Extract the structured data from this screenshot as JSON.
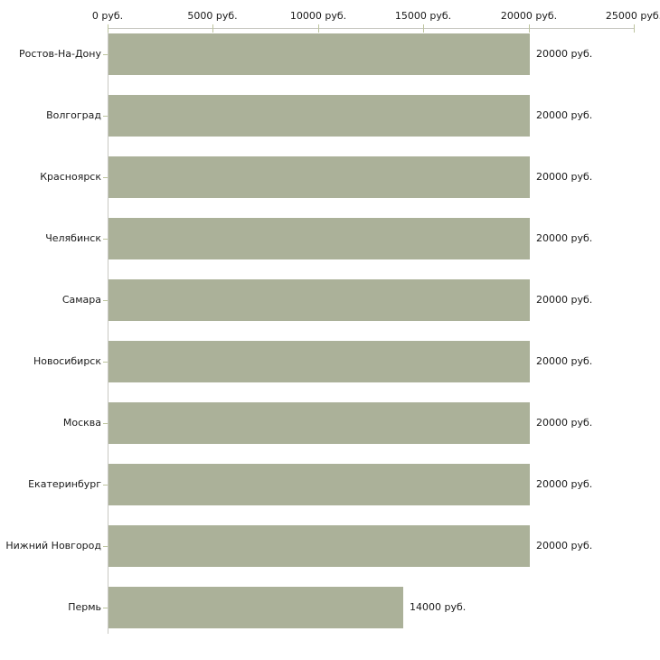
{
  "chart_data": {
    "type": "bar",
    "orientation": "horizontal",
    "title": "",
    "xlabel": "",
    "ylabel": "",
    "legend": false,
    "grid": false,
    "categories": [
      "Ростов-На-Дону",
      "Волгоград",
      "Красноярск",
      "Челябинск",
      "Самара",
      "Новосибирск",
      "Москва",
      "Екатеринбург",
      "Нижний Новгород",
      "Пермь"
    ],
    "values": [
      20000,
      20000,
      20000,
      20000,
      20000,
      20000,
      20000,
      20000,
      20000,
      14000
    ],
    "value_labels": [
      "20000 руб.",
      "20000 руб.",
      "20000 руб.",
      "20000 руб.",
      "20000 руб.",
      "20000 руб.",
      "20000 руб.",
      "20000 руб.",
      "20000 руб.",
      "14000 руб."
    ],
    "x_axis": {
      "position": "top",
      "min": 0,
      "max": 25000,
      "ticks": [
        0,
        5000,
        10000,
        15000,
        20000,
        25000
      ],
      "tick_labels": [
        "0 руб.",
        "5000 руб.",
        "10000 руб.",
        "15000 руб.",
        "20000 руб.",
        "25000 руб."
      ]
    },
    "colors": {
      "bar": "#abb199",
      "axis_line": "#c9c9c3",
      "tick_mark": "#bdc49e",
      "text": "#1a1a1a",
      "background": "#ffffff"
    }
  }
}
